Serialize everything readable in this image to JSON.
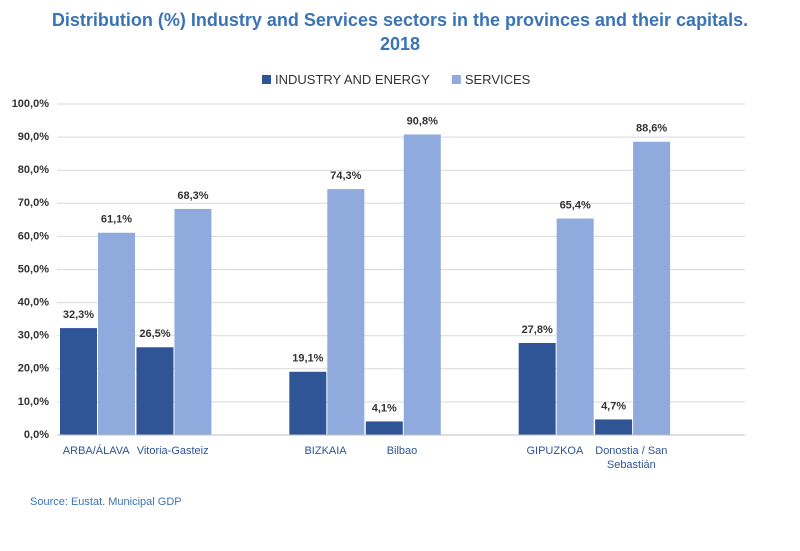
{
  "chart_data": {
    "type": "bar",
    "title": "Distribution (%) Industry and Services sectors in the provinces and their capitals. 2018",
    "source": "Source: Eustat. Municipal GDP",
    "categories": [
      "ARBA/ÁLAVA",
      "Vitoria-Gasteiz",
      null,
      "BIZKAIA",
      "Bilbao",
      null,
      "GIPUZKOA",
      "Donostia / San Sebastián",
      null
    ],
    "series": [
      {
        "name": "INDUSTRY AND ENERGY",
        "color": "#2f5597",
        "values": [
          32.3,
          26.5,
          null,
          19.1,
          4.1,
          null,
          27.8,
          4.7,
          null
        ],
        "value_labels": [
          "32,3%",
          "26,5%",
          null,
          "19,1%",
          "4,1%",
          null,
          "27,8%",
          "4,7%",
          null
        ]
      },
      {
        "name": "SERVICES",
        "color": "#8faadc",
        "values": [
          61.1,
          68.3,
          null,
          74.3,
          90.8,
          null,
          65.4,
          88.6,
          null
        ],
        "value_labels": [
          "61,1%",
          "68,3%",
          null,
          "74,3%",
          "90,8%",
          null,
          "65,4%",
          "88,6%",
          null
        ]
      }
    ],
    "ylim": [
      0,
      100
    ],
    "yticks": [
      {
        "value": 0,
        "label": "0,0%"
      },
      {
        "value": 10,
        "label": "10,0%"
      },
      {
        "value": 20,
        "label": "20,0%"
      },
      {
        "value": 30,
        "label": "30,0%"
      },
      {
        "value": 40,
        "label": "40,0%"
      },
      {
        "value": 50,
        "label": "50,0%"
      },
      {
        "value": 60,
        "label": "60,0%"
      },
      {
        "value": 70,
        "label": "70,0%"
      },
      {
        "value": 80,
        "label": "80,0%"
      },
      {
        "value": 90,
        "label": "90,0%"
      },
      {
        "value": 100,
        "label": "100,0%"
      }
    ],
    "grid": true,
    "legend": "top"
  }
}
